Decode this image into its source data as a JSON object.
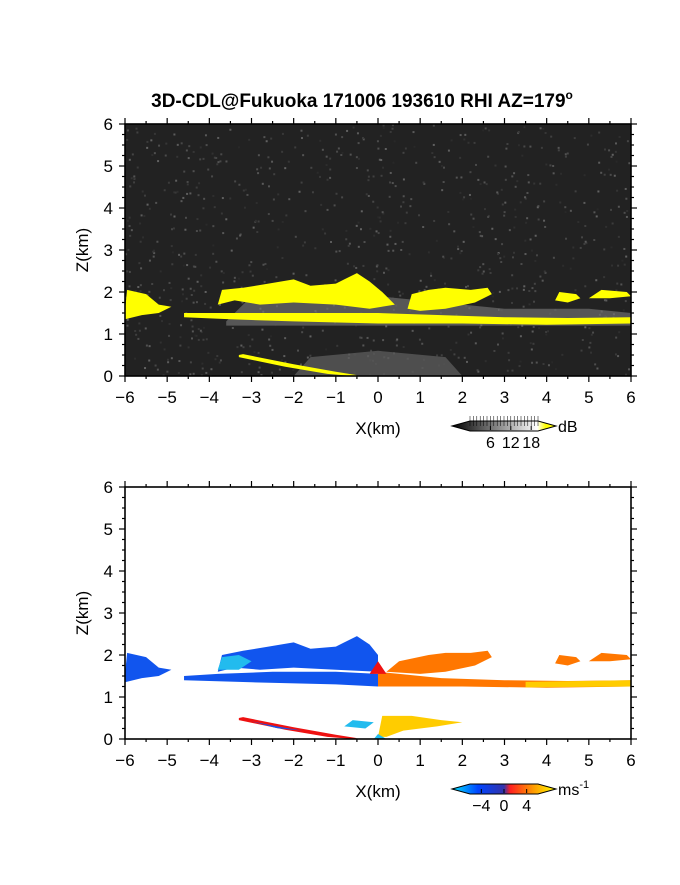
{
  "title": "3D-CDL@Fukuoka 171006 193610 RHI AZ=179",
  "title_sup": "o",
  "chart_data": [
    {
      "type": "heatmap",
      "quantity": "backscatter intensity",
      "xlabel": "X(km)",
      "ylabel": "Z(km)",
      "xlim": [
        -6,
        6
      ],
      "ylim": [
        0,
        6
      ],
      "xticks": [
        "-6",
        "-5",
        "-4",
        "-3",
        "-2",
        "-1",
        "0",
        "1",
        "2",
        "3",
        "4",
        "5",
        "6"
      ],
      "yticks": [
        "0",
        "1",
        "2",
        "3",
        "4",
        "5",
        "6"
      ],
      "background_color": "#222222",
      "colorbar": {
        "label": "dB",
        "ticks": [
          6,
          12,
          18
        ],
        "tick_labels": [
          "6",
          "12",
          "18"
        ],
        "range": [
          0,
          20
        ],
        "colors": [
          "#000000",
          "#ffffff",
          "#ffff00"
        ]
      },
      "features": [
        {
          "name": "elevated layer",
          "x_range": [
            -6,
            6
          ],
          "z_range": [
            1.2,
            2.4
          ],
          "value_db": 20
        },
        {
          "name": "low streak",
          "x_range": [
            -3.3,
            -0.5
          ],
          "z_range": [
            0,
            0.55
          ],
          "value_db": 20
        },
        {
          "name": "near-ground echo",
          "x_range": [
            -2,
            2
          ],
          "z_range": [
            0,
            0.6
          ],
          "value_db": 8
        }
      ]
    },
    {
      "type": "heatmap",
      "quantity": "Doppler velocity",
      "xlabel": "X(km)",
      "ylabel": "Z(km)",
      "xlim": [
        -6,
        6
      ],
      "ylim": [
        0,
        6
      ],
      "xticks": [
        "-6",
        "-5",
        "-4",
        "-3",
        "-2",
        "-1",
        "0",
        "1",
        "2",
        "3",
        "4",
        "5",
        "6"
      ],
      "yticks": [
        "0",
        "1",
        "2",
        "3",
        "4",
        "5",
        "6"
      ],
      "background_color": "#ffffff",
      "colorbar": {
        "label": "ms",
        "label_sup": "-1",
        "ticks": [
          -4,
          0,
          4
        ],
        "tick_labels": [
          "-4",
          "0",
          "4"
        ],
        "range": [
          -6,
          6
        ],
        "colors": [
          "#00e5ff",
          "#0044ff",
          "#ff2020",
          "#ffff00"
        ]
      },
      "features": [
        {
          "name": "negative velocity region",
          "x_range": [
            -6,
            0
          ],
          "z_range": [
            1.2,
            2.4
          ],
          "velocity": -3
        },
        {
          "name": "positive velocity region",
          "x_range": [
            0,
            6
          ],
          "z_range": [
            1.2,
            2.2
          ],
          "velocity": 3
        },
        {
          "name": "low streak",
          "x_range": [
            -3.3,
            -0.5
          ],
          "z_range": [
            0,
            0.55
          ],
          "velocity": 0
        },
        {
          "name": "near-surface velocity",
          "x_range": [
            -0.8,
            2.6
          ],
          "z_range": [
            0,
            0.55
          ],
          "velocity": 3
        }
      ]
    }
  ]
}
